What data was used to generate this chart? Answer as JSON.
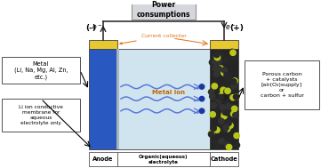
{
  "bg_color": "#ffffff",
  "gold_color": "#E8C830",
  "blue_color": "#2858C0",
  "electrolyte_color": "#D0E4F0",
  "cathode_dark": "#252525",
  "cathode_yellow": "#B8C818",
  "box_edge": "#404040",
  "orange_text": "#E07010",
  "wire_color": "#202020",
  "title_top": "Power\nconsumptions",
  "label_anode": "Anode",
  "label_electrolyte": "Organic(aqueous)\nelectrolyte",
  "label_cathode": "Cathode",
  "label_metal": "Metal\n(Li, Na, Mg, Al, Zn,\netc.)",
  "label_membrane": "Li ion conductive\nmembrane for\naqueous\nelectrolyte only",
  "label_cathode_desc": "Porous carbon\n+ catalysts\n[air(O₂)supply]\nor\ncarbon + sulfur",
  "label_current_collector": "Current collector",
  "label_metal_ion": "Metal Ion",
  "label_neg": "(-)",
  "label_pos": "(+)",
  "wavy_color": "#5878D8",
  "dot_color": "#1838A0",
  "metal_ion_color": "#C06800"
}
